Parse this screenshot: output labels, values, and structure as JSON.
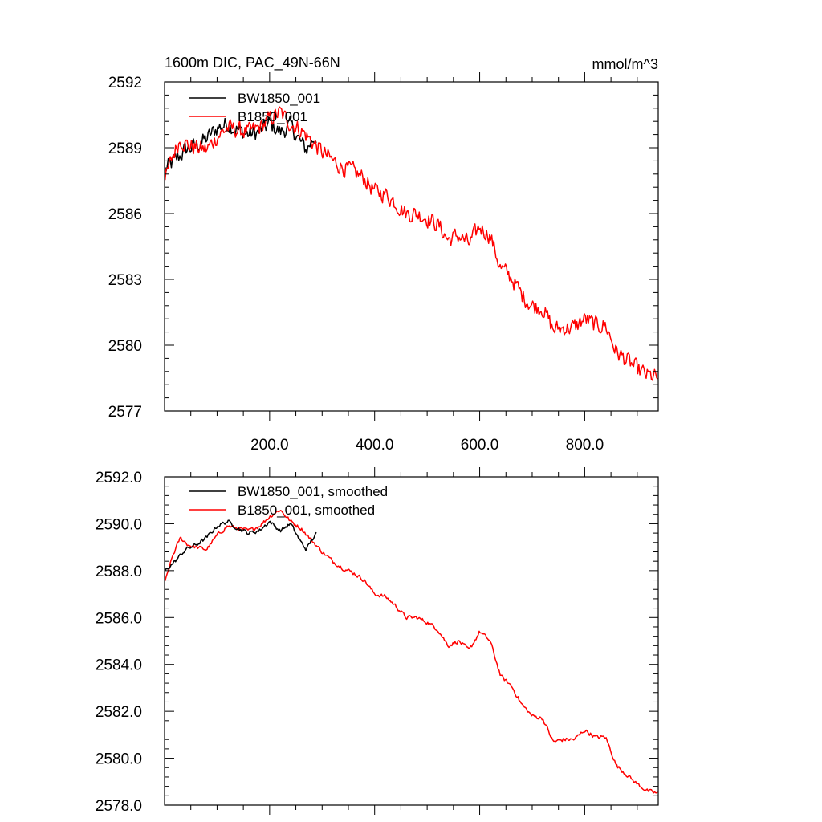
{
  "chart_data": [
    {
      "type": "line",
      "title": "1600m DIC, PAC_49N-66N",
      "units": "mmol/m^3",
      "xlabel": "",
      "ylabel": "",
      "xlim": [
        0,
        940
      ],
      "ylim": [
        2577,
        2592
      ],
      "x_ticks": [
        200,
        400,
        600,
        800
      ],
      "x_tick_labels": [
        "200.0",
        "400.0",
        "600.0",
        "800.0"
      ],
      "y_ticks": [
        2577,
        2580,
        2583,
        2586,
        2589,
        2592
      ],
      "y_tick_labels": [
        "2577",
        "2580",
        "2583",
        "2586",
        "2589",
        "2592"
      ],
      "legend_position": "top-left",
      "noise": 0.55,
      "series": [
        {
          "name": "BW1850_001",
          "color": "#000000",
          "x": [
            1,
            20,
            40,
            60,
            80,
            100,
            120,
            140,
            160,
            180,
            200,
            220,
            240,
            260,
            270,
            280,
            290
          ],
          "values": [
            2588.0,
            2588.4,
            2588.9,
            2589.1,
            2589.4,
            2589.9,
            2590.1,
            2589.8,
            2589.6,
            2589.7,
            2590.1,
            2589.7,
            2590.0,
            2589.2,
            2588.9,
            2589.3,
            2589.6
          ]
        },
        {
          "name": "B1850_001",
          "color": "#ff0000",
          "x": [
            1,
            15,
            30,
            45,
            60,
            80,
            100,
            120,
            140,
            160,
            180,
            200,
            220,
            240,
            260,
            280,
            300,
            320,
            340,
            360,
            380,
            400,
            420,
            440,
            460,
            480,
            500,
            520,
            540,
            560,
            580,
            600,
            620,
            640,
            660,
            680,
            700,
            720,
            740,
            760,
            780,
            800,
            820,
            840,
            860,
            880,
            900,
            920,
            940
          ],
          "values": [
            2587.5,
            2588.6,
            2589.4,
            2589.1,
            2589.0,
            2588.9,
            2589.5,
            2589.9,
            2589.8,
            2589.7,
            2589.9,
            2590.3,
            2590.6,
            2590.1,
            2589.8,
            2589.3,
            2588.8,
            2588.4,
            2588.1,
            2587.9,
            2587.6,
            2587.0,
            2586.9,
            2586.5,
            2586.0,
            2586.0,
            2585.8,
            2585.5,
            2584.8,
            2585.0,
            2584.6,
            2585.4,
            2585.0,
            2583.5,
            2583.1,
            2582.3,
            2581.8,
            2581.7,
            2580.7,
            2580.8,
            2580.8,
            2581.2,
            2580.9,
            2580.9,
            2579.7,
            2579.3,
            2578.9,
            2578.6,
            2578.5
          ]
        }
      ]
    },
    {
      "type": "line",
      "title": "",
      "xlabel": "",
      "ylabel": "",
      "xlim": [
        0,
        940
      ],
      "ylim": [
        2578,
        2592
      ],
      "x_ticks": [
        200,
        400,
        600,
        800
      ],
      "x_tick_labels": [],
      "y_ticks": [
        2578,
        2580,
        2582,
        2584,
        2586,
        2588,
        2590,
        2592
      ],
      "y_tick_labels": [
        "2578.0",
        "2580.0",
        "2582.0",
        "2584.0",
        "2586.0",
        "2588.0",
        "2590.0",
        "2592.0"
      ],
      "legend_position": "top-left",
      "noise": 0.12,
      "series": [
        {
          "name": "BW1850_001, smoothed",
          "color": "#000000",
          "x": [
            1,
            20,
            40,
            60,
            80,
            100,
            120,
            140,
            160,
            180,
            200,
            220,
            240,
            260,
            270,
            280,
            290
          ],
          "values": [
            2588.0,
            2588.4,
            2588.9,
            2589.1,
            2589.4,
            2589.9,
            2590.1,
            2589.8,
            2589.6,
            2589.7,
            2590.1,
            2589.7,
            2590.0,
            2589.2,
            2588.9,
            2589.3,
            2589.6
          ]
        },
        {
          "name": "B1850_001, smoothed",
          "color": "#ff0000",
          "x": [
            1,
            15,
            30,
            45,
            60,
            80,
            100,
            120,
            140,
            160,
            180,
            200,
            220,
            240,
            260,
            280,
            300,
            320,
            340,
            360,
            380,
            400,
            420,
            440,
            460,
            480,
            500,
            520,
            540,
            560,
            580,
            600,
            620,
            640,
            660,
            680,
            700,
            720,
            740,
            760,
            780,
            800,
            820,
            840,
            860,
            880,
            900,
            920,
            940
          ],
          "values": [
            2587.5,
            2588.6,
            2589.4,
            2589.1,
            2589.0,
            2588.9,
            2589.5,
            2589.9,
            2589.8,
            2589.7,
            2589.9,
            2590.3,
            2590.6,
            2590.1,
            2589.8,
            2589.3,
            2588.8,
            2588.4,
            2588.1,
            2587.9,
            2587.6,
            2587.0,
            2586.9,
            2586.5,
            2586.0,
            2586.0,
            2585.8,
            2585.5,
            2584.8,
            2585.0,
            2584.6,
            2585.4,
            2585.0,
            2583.5,
            2583.1,
            2582.3,
            2581.8,
            2581.7,
            2580.7,
            2580.8,
            2580.8,
            2581.2,
            2580.9,
            2580.9,
            2579.7,
            2579.3,
            2578.9,
            2578.6,
            2578.5
          ]
        }
      ]
    }
  ]
}
